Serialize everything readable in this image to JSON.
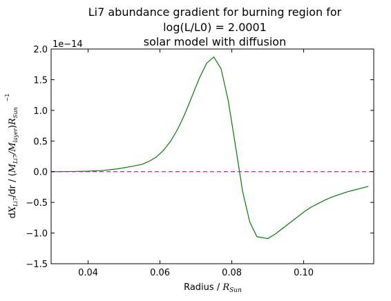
{
  "chart_data": {
    "type": "line",
    "title": [
      "Li7 abundance gradient for burning region for",
      "log(L/L0) = 2.0001",
      "solar model with diffusion"
    ],
    "xlabel": {
      "text": "Radius / ",
      "math": "R",
      "math_sub": "Sun"
    },
    "ylabel": {
      "prefix": "d",
      "x_sym": "X",
      "x_sub": "Li7",
      "mid": "/dr / (",
      "m1": "M",
      "m1_sub": "Li7",
      "slash": "/",
      "m2": "M",
      "m2_sub": "layer",
      "close": ")",
      "r": "R",
      "r_sub": "Sun",
      "exp": "−1"
    },
    "offset_label": "1e−14",
    "xlim": [
      0.0297,
      0.1195
    ],
    "ylim": [
      -1.5,
      2.0
    ],
    "x_ticks": [
      0.04,
      0.06,
      0.08,
      0.1
    ],
    "x_tick_labels": [
      "0.04",
      "0.06",
      "0.08",
      "0.10"
    ],
    "y_ticks": [
      -1.5,
      -1.0,
      -0.5,
      0.0,
      0.5,
      1.0,
      1.5,
      2.0
    ],
    "y_tick_labels": [
      "−1.5",
      "−1.0",
      "−0.5",
      "0.0",
      "0.5",
      "1.0",
      "1.5",
      "2.0"
    ],
    "grid": false,
    "series": [
      {
        "style": "solid",
        "color": "#008000",
        "x": [
          0.0297,
          0.036,
          0.04,
          0.044,
          0.048,
          0.052,
          0.055,
          0.057,
          0.059,
          0.061,
          0.063,
          0.065,
          0.067,
          0.069,
          0.071,
          0.073,
          0.075,
          0.077,
          0.079,
          0.081,
          0.083,
          0.085,
          0.087,
          0.09,
          0.092,
          0.094,
          0.096,
          0.098,
          0.1,
          0.102,
          0.104,
          0.106,
          0.108,
          0.11,
          0.112,
          0.114,
          0.116,
          0.118
        ],
        "y": [
          0.0,
          0.003,
          0.008,
          0.02,
          0.045,
          0.085,
          0.12,
          0.17,
          0.24,
          0.35,
          0.5,
          0.7,
          0.95,
          1.24,
          1.53,
          1.77,
          1.87,
          1.68,
          1.16,
          0.43,
          -0.32,
          -0.82,
          -1.06,
          -1.09,
          -1.02,
          -0.93,
          -0.84,
          -0.75,
          -0.66,
          -0.58,
          -0.52,
          -0.46,
          -0.41,
          -0.37,
          -0.33,
          -0.3,
          -0.27,
          -0.24
        ]
      },
      {
        "style": "dashed",
        "color": "#bf00bf",
        "x": [
          0.0297,
          0.1195
        ],
        "y": [
          0.0,
          0.0
        ]
      }
    ]
  }
}
